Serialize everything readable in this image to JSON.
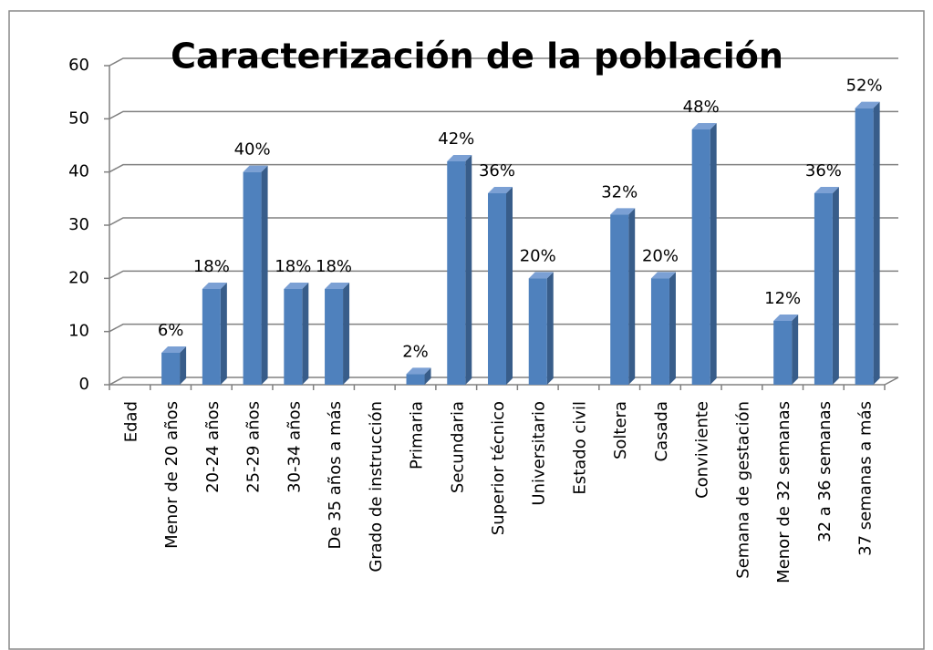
{
  "chart_data": {
    "type": "bar3d",
    "title": "Caracterización de la población",
    "categories": [
      "Edad",
      "Menor de 20 años",
      "20-24 años",
      "25-29 años",
      "30-34 años",
      "De 35 años a más",
      "Grado de instrucción",
      "Primaria",
      "Secundaria",
      "Superior técnico",
      "Universitario",
      "Estado civil",
      "Soltera",
      "Casada",
      "Conviviente",
      "Semana de gestación",
      "Menor de 32 semanas",
      "32 a 36 semanas",
      "37 semanas a más"
    ],
    "values": [
      null,
      6,
      18,
      40,
      18,
      18,
      null,
      2,
      42,
      36,
      20,
      null,
      32,
      20,
      48,
      null,
      12,
      36,
      52
    ],
    "value_labels": [
      null,
      "6%",
      "18%",
      "40%",
      "18%",
      "18%",
      null,
      "2%",
      "42%",
      "36%",
      "20%",
      null,
      "32%",
      "20%",
      "48%",
      null,
      "12%",
      "36%",
      "52%"
    ],
    "color": "#4f81bd",
    "ylim": [
      0,
      60
    ],
    "yticks": [
      0,
      10,
      20,
      30,
      40,
      50,
      60
    ],
    "grid": true
  }
}
